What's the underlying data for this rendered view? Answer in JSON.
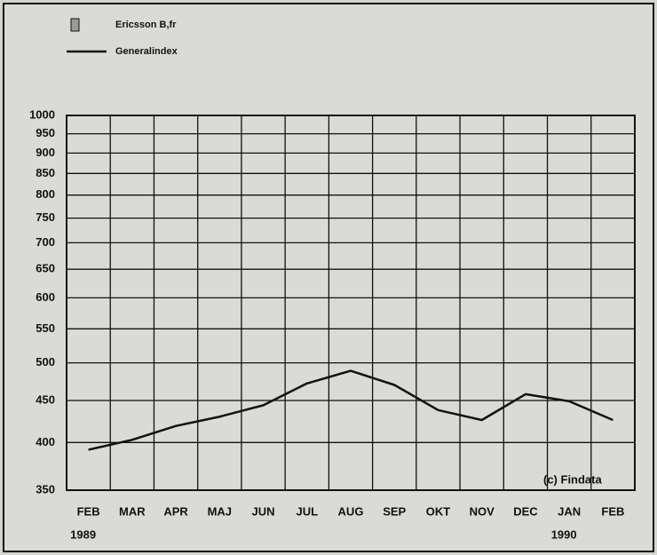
{
  "chart_data": {
    "type": "line",
    "categories": [
      "FEB",
      "MAR",
      "APR",
      "MAJ",
      "JUN",
      "JUL",
      "AUG",
      "SEP",
      "OKT",
      "NOV",
      "DEC",
      "JAN",
      "FEB"
    ],
    "year_labels": [
      "1989",
      null,
      null,
      null,
      null,
      null,
      null,
      null,
      null,
      null,
      null,
      "1990",
      null
    ],
    "series": [
      {
        "name": "Ericsson B,fr",
        "color": "#9a9a9a",
        "values": [
          null,
          null,
          null,
          null,
          null,
          null,
          null,
          null,
          null,
          null,
          null,
          null,
          null
        ]
      },
      {
        "name": "Generalindex",
        "color": "#111111",
        "values": [
          392,
          403,
          419,
          430,
          444,
          472,
          489,
          470,
          438,
          426,
          458,
          449,
          426
        ]
      }
    ],
    "ylim": [
      350,
      1000
    ],
    "yscale": "log",
    "yticks": [
      350,
      400,
      450,
      500,
      550,
      600,
      650,
      700,
      750,
      800,
      850,
      900,
      950,
      1000
    ],
    "grid": true,
    "annotation": "(c) Findata"
  }
}
